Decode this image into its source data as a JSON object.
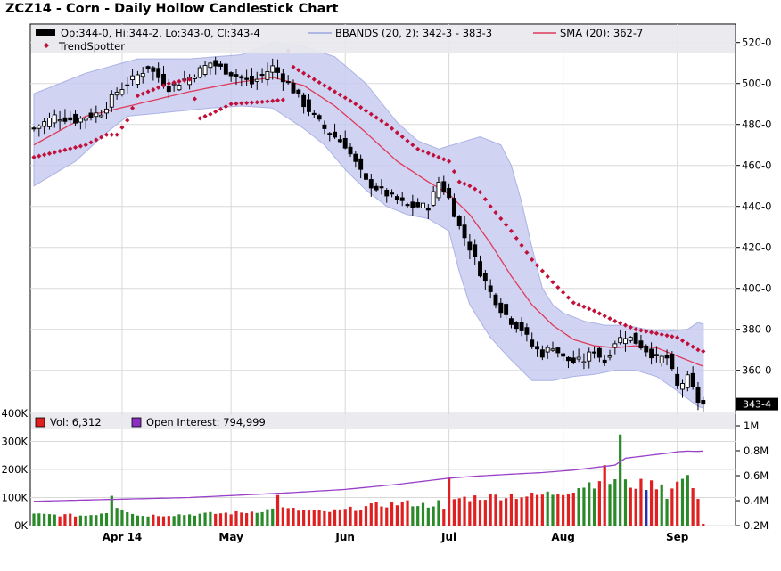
{
  "chart_data": [
    {
      "type": "candlestick",
      "title": "ZCZ14 - Corn - Daily Hollow Candlestick Chart",
      "price_format": "quarter-cent (e.g. 520-0 = 520.00)",
      "yticks": [
        {
          "v": 520,
          "label": "520-0"
        },
        {
          "v": 500,
          "label": "500-0"
        },
        {
          "v": 480,
          "label": "480-0"
        },
        {
          "v": 460,
          "label": "460-0"
        },
        {
          "v": 440,
          "label": "440-0"
        },
        {
          "v": 420,
          "label": "420-0"
        },
        {
          "v": 400,
          "label": "400-0"
        },
        {
          "v": 380,
          "label": "380-0"
        },
        {
          "v": 360,
          "label": "360-0"
        }
      ],
      "ylim": [
        339,
        529
      ],
      "last_price": 343.5,
      "last_price_label": "343-4",
      "legend": {
        "ohlc": "Op:344-0, Hi:344-2, Lo:343-0, Cl:343-4",
        "bbands": "BBANDS (20, 2): 342-3 - 383-3",
        "sma": "SMA (20): 362-7",
        "trendspotter": "TrendSpotter"
      },
      "xlabels": [
        {
          "i": 17,
          "label": "Apr 14"
        },
        {
          "i": 38,
          "label": "May"
        },
        {
          "i": 60,
          "label": "Jun"
        },
        {
          "i": 80,
          "label": "Jul"
        },
        {
          "i": 102,
          "label": "Aug"
        },
        {
          "i": 124,
          "label": "Sep"
        }
      ],
      "close_anchors": [
        [
          0,
          478
        ],
        [
          4,
          484
        ],
        [
          8,
          482
        ],
        [
          13,
          486
        ],
        [
          16,
          496
        ],
        [
          22,
          508
        ],
        [
          26,
          498
        ],
        [
          30,
          503
        ],
        [
          34,
          510
        ],
        [
          38,
          505
        ],
        [
          42,
          500
        ],
        [
          46,
          508
        ],
        [
          49,
          500
        ],
        [
          52,
          490
        ],
        [
          56,
          478
        ],
        [
          60,
          470
        ],
        [
          64,
          452
        ],
        [
          68,
          446
        ],
        [
          72,
          440
        ],
        [
          76,
          440
        ],
        [
          78,
          452
        ],
        [
          80,
          444
        ],
        [
          82,
          430
        ],
        [
          84,
          420
        ],
        [
          86,
          408
        ],
        [
          88,
          398
        ],
        [
          90,
          390
        ],
        [
          92,
          384
        ],
        [
          94,
          380
        ],
        [
          96,
          372
        ],
        [
          98,
          368
        ],
        [
          100,
          372
        ],
        [
          102,
          366
        ],
        [
          104,
          364
        ],
        [
          106,
          365
        ],
        [
          108,
          370
        ],
        [
          110,
          364
        ],
        [
          112,
          374
        ],
        [
          114,
          377
        ],
        [
          116,
          374
        ],
        [
          118,
          370
        ],
        [
          120,
          366
        ],
        [
          122,
          366
        ],
        [
          124,
          352
        ],
        [
          126,
          356
        ],
        [
          128,
          345
        ],
        [
          129,
          343.5
        ]
      ],
      "sma_anchors": [
        [
          0,
          470
        ],
        [
          10,
          484
        ],
        [
          20,
          490
        ],
        [
          30,
          496
        ],
        [
          38,
          500
        ],
        [
          46,
          503
        ],
        [
          52,
          499
        ],
        [
          58,
          489
        ],
        [
          64,
          476
        ],
        [
          70,
          462
        ],
        [
          76,
          452
        ],
        [
          80,
          446
        ],
        [
          84,
          436
        ],
        [
          88,
          422
        ],
        [
          92,
          406
        ],
        [
          96,
          392
        ],
        [
          100,
          382
        ],
        [
          104,
          375
        ],
        [
          108,
          372
        ],
        [
          112,
          371
        ],
        [
          116,
          372
        ],
        [
          120,
          371
        ],
        [
          124,
          367
        ],
        [
          128,
          362.9
        ]
      ],
      "bbands_upper_anchors": [
        [
          0,
          495
        ],
        [
          10,
          505
        ],
        [
          20,
          512
        ],
        [
          30,
          512
        ],
        [
          40,
          514
        ],
        [
          46,
          520
        ],
        [
          52,
          518
        ],
        [
          58,
          513
        ],
        [
          64,
          500
        ],
        [
          70,
          481
        ],
        [
          74,
          472
        ],
        [
          78,
          468
        ],
        [
          82,
          471
        ],
        [
          86,
          474
        ],
        [
          90,
          470
        ],
        [
          92,
          460
        ],
        [
          94,
          442
        ],
        [
          96,
          420
        ],
        [
          98,
          400
        ],
        [
          100,
          392
        ],
        [
          102,
          388
        ],
        [
          106,
          384
        ],
        [
          110,
          382
        ],
        [
          114,
          382
        ],
        [
          118,
          380
        ],
        [
          122,
          379
        ],
        [
          126,
          380
        ],
        [
          128,
          383.4
        ]
      ],
      "bbands_lower_anchors": [
        [
          0,
          450
        ],
        [
          8,
          462
        ],
        [
          14,
          476
        ],
        [
          18,
          484
        ],
        [
          26,
          486
        ],
        [
          34,
          488
        ],
        [
          40,
          489
        ],
        [
          46,
          488
        ],
        [
          52,
          478
        ],
        [
          56,
          470
        ],
        [
          60,
          458
        ],
        [
          64,
          448
        ],
        [
          68,
          440
        ],
        [
          72,
          436
        ],
        [
          76,
          434
        ],
        [
          80,
          428
        ],
        [
          82,
          408
        ],
        [
          84,
          392
        ],
        [
          88,
          376
        ],
        [
          92,
          365
        ],
        [
          94,
          360
        ],
        [
          96,
          355
        ],
        [
          100,
          355
        ],
        [
          104,
          357
        ],
        [
          108,
          358
        ],
        [
          112,
          360
        ],
        [
          116,
          360
        ],
        [
          120,
          357
        ],
        [
          124,
          350
        ],
        [
          128,
          342.4
        ]
      ],
      "trendspotter_anchors": [
        [
          0,
          464
        ],
        [
          10,
          470
        ],
        [
          14,
          475
        ],
        [
          16,
          475
        ],
        [
          18,
          482
        ],
        [
          20,
          494
        ],
        [
          26,
          500
        ],
        [
          30,
          502
        ],
        [
          32,
          483
        ],
        [
          34,
          485
        ],
        [
          38,
          490
        ],
        [
          44,
          491
        ],
        [
          48,
          492
        ],
        [
          49,
          516
        ],
        [
          50,
          508
        ],
        [
          56,
          499
        ],
        [
          62,
          490
        ],
        [
          68,
          480
        ],
        [
          74,
          468
        ],
        [
          80,
          462
        ],
        [
          82,
          452
        ],
        [
          84,
          450
        ],
        [
          86,
          447
        ],
        [
          88,
          440
        ],
        [
          92,
          428
        ],
        [
          96,
          414
        ],
        [
          100,
          403
        ],
        [
          104,
          393
        ],
        [
          108,
          389
        ],
        [
          112,
          384
        ],
        [
          116,
          380
        ],
        [
          120,
          378
        ],
        [
          124,
          376
        ],
        [
          128,
          370
        ]
      ]
    },
    {
      "type": "bar",
      "series": [
        {
          "name": "Vol",
          "legend_label": "Vol: 6,312",
          "color_up": "#2a8a2a",
          "color_down": "#e02020"
        },
        {
          "name": "Open Interest",
          "legend_label": "Open Interest: 794,999",
          "color": "#9a40c8"
        }
      ],
      "volume_ylim": [
        0,
        400000
      ],
      "volume_ticks": [
        {
          "v": 400000,
          "label": "400K"
        },
        {
          "v": 300000,
          "label": "300K"
        },
        {
          "v": 200000,
          "label": "200K"
        },
        {
          "v": 100000,
          "label": "100K"
        },
        {
          "v": 0,
          "label": "0K"
        }
      ],
      "oi_ylim": [
        200000,
        1100000
      ],
      "oi_ticks": [
        {
          "v": 1000000,
          "label": "1M"
        },
        {
          "v": 800000,
          "label": "0.8M"
        },
        {
          "v": 600000,
          "label": "0.6M"
        },
        {
          "v": 400000,
          "label": "0.4M"
        },
        {
          "v": 200000,
          "label": "0.2M"
        }
      ],
      "volume_anchors": [
        [
          0,
          40000
        ],
        [
          10,
          36000
        ],
        [
          14,
          48000
        ],
        [
          15,
          115000
        ],
        [
          16,
          70000
        ],
        [
          20,
          36000
        ],
        [
          30,
          40000
        ],
        [
          40,
          46000
        ],
        [
          46,
          58000
        ],
        [
          47,
          120000
        ],
        [
          48,
          60000
        ],
        [
          56,
          48000
        ],
        [
          60,
          56000
        ],
        [
          66,
          72000
        ],
        [
          72,
          80000
        ],
        [
          76,
          72000
        ],
        [
          78,
          82000
        ],
        [
          79,
          55000
        ],
        [
          80,
          160000
        ],
        [
          81,
          95000
        ],
        [
          86,
          102000
        ],
        [
          92,
          108000
        ],
        [
          96,
          105000
        ],
        [
          100,
          115000
        ],
        [
          104,
          130000
        ],
        [
          106,
          145000
        ],
        [
          108,
          155000
        ],
        [
          110,
          190000
        ],
        [
          111,
          155000
        ],
        [
          112,
          170000
        ],
        [
          113,
          310000
        ],
        [
          114,
          148000
        ],
        [
          118,
          145000
        ],
        [
          121,
          150000
        ],
        [
          122,
          108000
        ],
        [
          124,
          150000
        ],
        [
          125,
          170000
        ],
        [
          126,
          160000
        ],
        [
          127,
          148000
        ],
        [
          128,
          105000
        ],
        [
          129,
          6312
        ]
      ],
      "oi_anchors": [
        [
          0,
          395000
        ],
        [
          10,
          405000
        ],
        [
          20,
          415000
        ],
        [
          30,
          425000
        ],
        [
          40,
          445000
        ],
        [
          50,
          465000
        ],
        [
          60,
          490000
        ],
        [
          70,
          530000
        ],
        [
          76,
          560000
        ],
        [
          80,
          580000
        ],
        [
          86,
          598000
        ],
        [
          92,
          612000
        ],
        [
          98,
          625000
        ],
        [
          104,
          645000
        ],
        [
          108,
          665000
        ],
        [
          112,
          685000
        ],
        [
          114,
          740000
        ],
        [
          118,
          760000
        ],
        [
          122,
          780000
        ],
        [
          124,
          792000
        ],
        [
          126,
          797000
        ],
        [
          128,
          794999
        ]
      ]
    }
  ]
}
